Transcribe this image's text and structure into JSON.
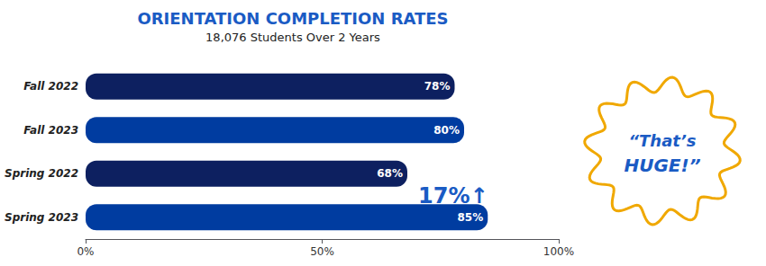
{
  "chart_data": {
    "type": "bar",
    "orientation": "horizontal",
    "title": "ORIENTATION COMPLETION RATES",
    "subtitle": "18,076 Students Over 2 Years",
    "categories": [
      "Fall 2022",
      "Fall 2023",
      "Spring 2022",
      "Spring 2023"
    ],
    "values": [
      78,
      80,
      68,
      85
    ],
    "value_labels": [
      "78%",
      "80%",
      "68%",
      "85%"
    ],
    "data_labels": true,
    "colors": [
      "#0d2060",
      "#003ca0",
      "#0d2060",
      "#003ca0"
    ],
    "xlim": [
      0,
      100
    ],
    "xticks": [
      {
        "value": 0,
        "label": "0%"
      },
      {
        "value": 50,
        "label": "50%"
      },
      {
        "value": 100,
        "label": "100%"
      }
    ],
    "grid": false,
    "annotations": [
      "17%↑",
      "“That’s",
      "HUGE!”"
    ]
  }
}
